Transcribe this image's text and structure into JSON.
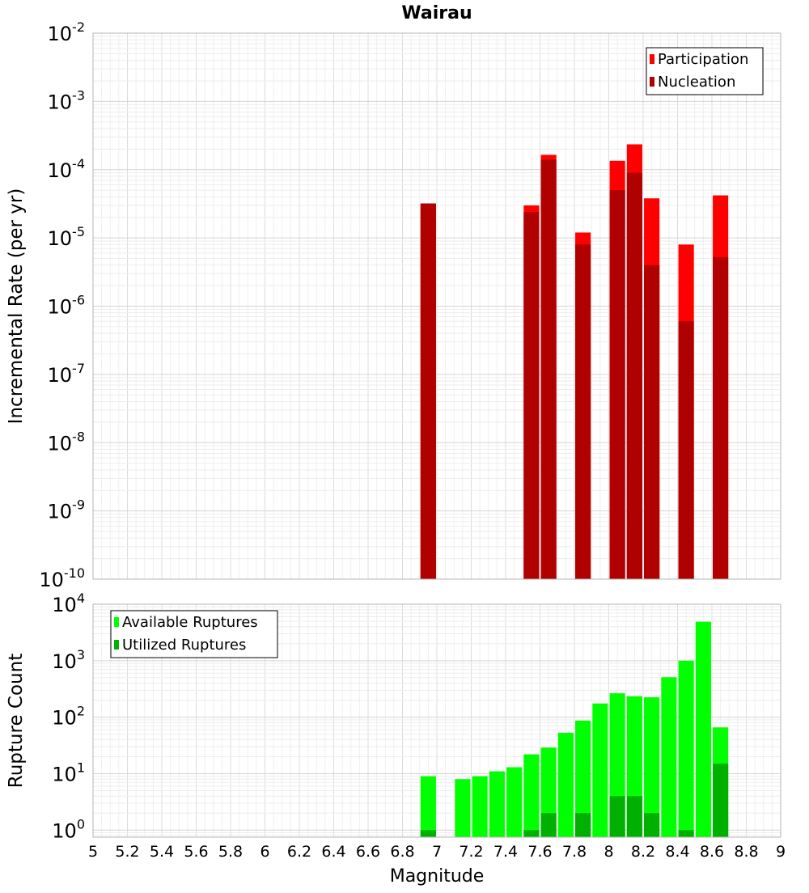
{
  "chart_data": [
    {
      "type": "bar",
      "title": "Wairau",
      "ylabel": "Incremental Rate (per yr)",
      "xlabel": "",
      "yscale": "log",
      "ylim": [
        1e-10,
        0.01
      ],
      "xlim": [
        5,
        9
      ],
      "grid": true,
      "y_ticks": [
        {
          "base": "10",
          "exp": "-10"
        },
        {
          "base": "10",
          "exp": "-9"
        },
        {
          "base": "10",
          "exp": "-8"
        },
        {
          "base": "10",
          "exp": "-7"
        },
        {
          "base": "10",
          "exp": "-6"
        },
        {
          "base": "10",
          "exp": "-5"
        },
        {
          "base": "10",
          "exp": "-4"
        },
        {
          "base": "10",
          "exp": "-3"
        },
        {
          "base": "10",
          "exp": "-2"
        }
      ],
      "legend": {
        "placement": "top-right",
        "entries": [
          "Participation",
          "Nucleation"
        ]
      },
      "series": [
        {
          "name": "Participation",
          "color": "#ff0000",
          "x": [
            6.95,
            7.55,
            7.65,
            7.85,
            8.05,
            8.15,
            8.25,
            8.45,
            8.65
          ],
          "values": [
            3.2e-05,
            3e-05,
            0.000165,
            1.2e-05,
            0.000135,
            0.000235,
            3.8e-05,
            8e-06,
            4.2e-05
          ]
        },
        {
          "name": "Nucleation",
          "color": "#b00000",
          "x": [
            6.95,
            7.55,
            7.65,
            7.85,
            8.05,
            8.15,
            8.25,
            8.45,
            8.65
          ],
          "values": [
            3.2e-05,
            2.4e-05,
            0.00014,
            8e-06,
            5e-05,
            9e-05,
            4e-06,
            6e-07,
            5.2e-06
          ]
        }
      ]
    },
    {
      "type": "bar",
      "title": "",
      "ylabel": "Rupture Count",
      "xlabel": "Magnitude",
      "yscale": "log",
      "ylim": [
        0.75,
        10000
      ],
      "xlim": [
        5,
        9
      ],
      "grid": true,
      "x_ticks": [
        "5",
        "5.2",
        "5.4",
        "5.6",
        "5.8",
        "6",
        "6.2",
        "6.4",
        "6.6",
        "6.8",
        "7",
        "7.2",
        "7.4",
        "7.6",
        "7.8",
        "8",
        "8.2",
        "8.4",
        "8.6",
        "8.8",
        "9"
      ],
      "y_ticks": [
        {
          "base": "10",
          "exp": "0"
        },
        {
          "base": "10",
          "exp": "1"
        },
        {
          "base": "10",
          "exp": "2"
        },
        {
          "base": "10",
          "exp": "3"
        },
        {
          "base": "10",
          "exp": "4"
        }
      ],
      "legend": {
        "placement": "top-left",
        "entries": [
          "Available Ruptures",
          "Utilized Ruptures"
        ]
      },
      "series": [
        {
          "name": "Available Ruptures",
          "color": "#00ff00",
          "x": [
            6.95,
            7.15,
            7.25,
            7.35,
            7.45,
            7.55,
            7.65,
            7.75,
            7.85,
            7.95,
            8.05,
            8.15,
            8.25,
            8.35,
            8.45,
            8.55,
            8.65
          ],
          "values": [
            9,
            8,
            9,
            11,
            13,
            22,
            29,
            53,
            87,
            175,
            265,
            235,
            225,
            510,
            1000,
            4900,
            66
          ]
        },
        {
          "name": "Utilized Ruptures",
          "color": "#00b000",
          "x": [
            6.95,
            7.55,
            7.65,
            7.85,
            8.05,
            8.15,
            8.25,
            8.45,
            8.65
          ],
          "values": [
            1,
            1,
            2,
            2,
            4,
            4,
            2,
            1,
            15
          ]
        }
      ]
    }
  ]
}
